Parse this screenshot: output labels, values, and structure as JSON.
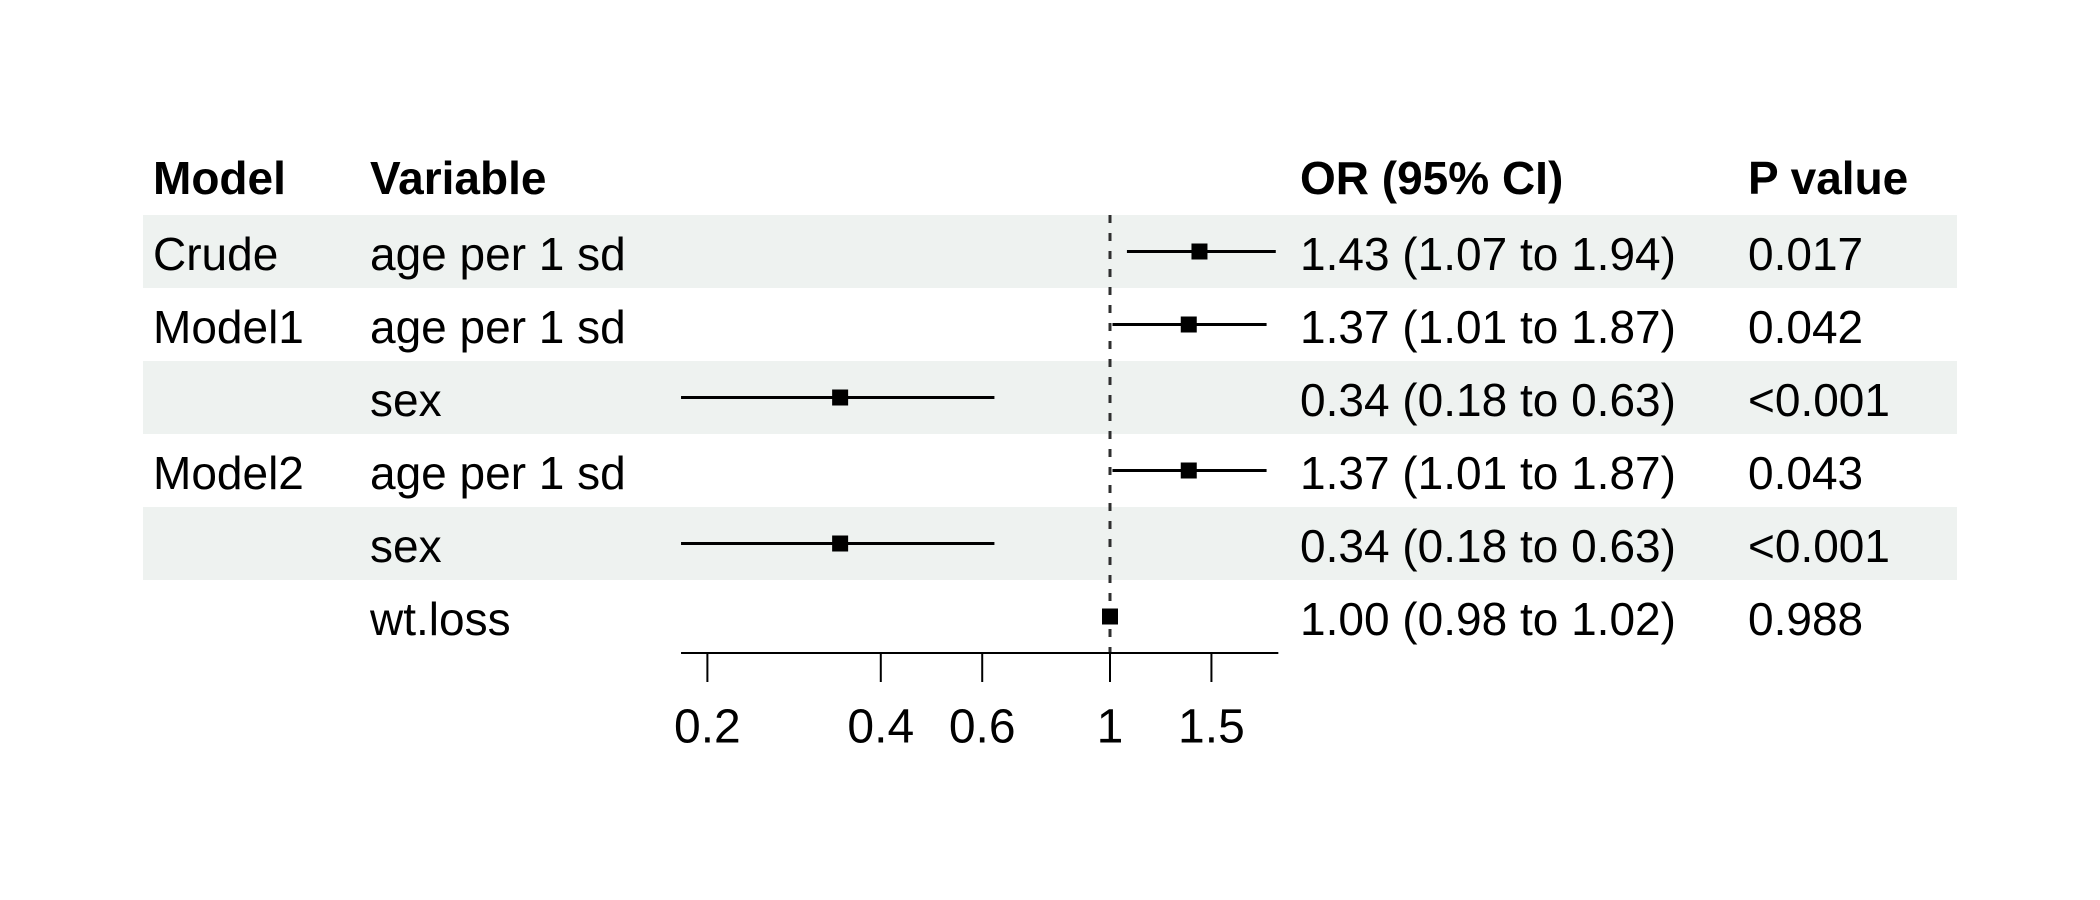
{
  "figure": {
    "type_label": "forest plot",
    "background": "#ffffff"
  },
  "table": {
    "headers": {
      "model": "Model",
      "variable": "Variable",
      "or_ci": "OR (95% CI)",
      "p_value": "P value"
    },
    "rows": [
      {
        "model": "Crude",
        "variable": "age per 1 sd",
        "or_ci": "1.43 (1.07 to 1.94)",
        "p_value": "0.017",
        "shaded": true
      },
      {
        "model": "Model1",
        "variable": "age per 1 sd",
        "or_ci": "1.37 (1.01 to 1.87)",
        "p_value": "0.042",
        "shaded": false
      },
      {
        "model": "",
        "variable": "sex",
        "or_ci": "0.34 (0.18 to 0.63)",
        "p_value": "<0.001",
        "shaded": true
      },
      {
        "model": "Model2",
        "variable": "age per 1 sd",
        "or_ci": "1.37 (1.01 to 1.87)",
        "p_value": "0.043",
        "shaded": false
      },
      {
        "model": "",
        "variable": "sex",
        "or_ci": "0.34 (0.18 to 0.63)",
        "p_value": "<0.001",
        "shaded": true
      },
      {
        "model": "",
        "variable": "wt.loss",
        "or_ci": "1.00 (0.98 to 1.02)",
        "p_value": "0.988",
        "shaded": false
      }
    ]
  },
  "chart_data": {
    "type": "forest",
    "x_scale": "log10",
    "reference_line": 1,
    "xlim": [
      0.18,
      1.96
    ],
    "x_ticks": [
      0.2,
      0.4,
      0.6,
      1,
      1.5
    ],
    "x_tick_labels": [
      "0.2",
      "0.4",
      "0.6",
      "1",
      "1.5"
    ],
    "series": [
      {
        "model": "Crude",
        "variable": "age per 1 sd",
        "or": 1.43,
        "ci_low": 1.07,
        "ci_high": 1.94,
        "p": "0.017"
      },
      {
        "model": "Model1",
        "variable": "age per 1 sd",
        "or": 1.37,
        "ci_low": 1.01,
        "ci_high": 1.87,
        "p": "0.042"
      },
      {
        "model": "Model1",
        "variable": "sex",
        "or": 0.34,
        "ci_low": 0.18,
        "ci_high": 0.63,
        "p": "<0.001"
      },
      {
        "model": "Model2",
        "variable": "age per 1 sd",
        "or": 1.37,
        "ci_low": 1.01,
        "ci_high": 1.87,
        "p": "0.043"
      },
      {
        "model": "Model2",
        "variable": "sex",
        "or": 0.34,
        "ci_low": 0.18,
        "ci_high": 0.63,
        "p": "<0.001"
      },
      {
        "model": "Model2",
        "variable": "wt.loss",
        "or": 1.0,
        "ci_low": 0.98,
        "ci_high": 1.02,
        "p": "0.988"
      }
    ],
    "legend": "none",
    "grid": "off",
    "colors": {
      "stripe": "#eef2f0",
      "marker": "#000000",
      "ci_line": "#000000",
      "axis": "#000000",
      "reference_line": "#2f2f2f",
      "text": "#000000"
    }
  }
}
